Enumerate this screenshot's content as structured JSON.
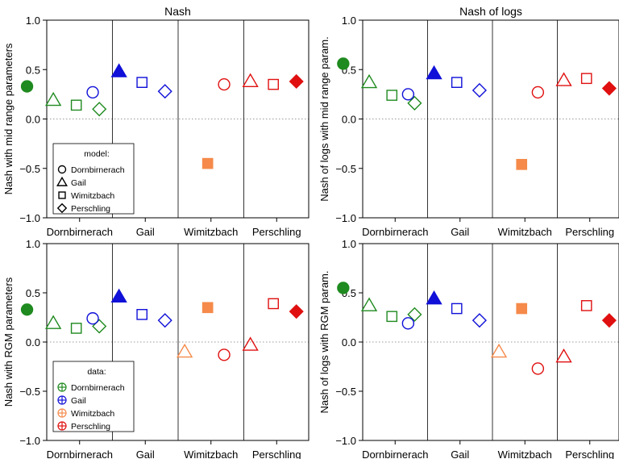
{
  "chart_data": [
    {
      "type": "scatter",
      "title": "Nash",
      "ylabel": "Nash with mid range parameters",
      "categories": [
        "Dornbirnerach",
        "Gail",
        "Wimitzbach",
        "Perschling"
      ],
      "ylim": [
        -1.0,
        1.0
      ],
      "yticks": [
        "1.0",
        "0.5",
        "0.0",
        "-0.5",
        "-1.0"
      ],
      "legend": {
        "title": "model:",
        "placement": "bottom-left",
        "entries": [
          "Dornbirnerach",
          "Gail",
          "Wimitzbach",
          "Perschling"
        ]
      },
      "points": [
        {
          "data": 0,
          "model": 0,
          "y": 0.33
        },
        {
          "data": 0,
          "model": 1,
          "y": 0.19
        },
        {
          "data": 0,
          "model": 2,
          "y": 0.14
        },
        {
          "data": 0,
          "model": 3,
          "y": 0.1
        },
        {
          "data": 1,
          "model": 0,
          "y": 0.27
        },
        {
          "data": 1,
          "model": 1,
          "y": 0.48
        },
        {
          "data": 1,
          "model": 2,
          "y": 0.37
        },
        {
          "data": 1,
          "model": 3,
          "y": 0.28
        },
        {
          "data": 2,
          "model": 2,
          "y": -0.45
        },
        {
          "data": 3,
          "model": 0,
          "y": 0.35
        },
        {
          "data": 3,
          "model": 1,
          "y": 0.38
        },
        {
          "data": 3,
          "model": 2,
          "y": 0.35
        },
        {
          "data": 3,
          "model": 3,
          "y": 0.38
        }
      ]
    },
    {
      "type": "scatter",
      "title": "Nash of logs",
      "ylabel": "Nash of logs with mid range param.",
      "categories": [
        "Dornbirnerach",
        "Gail",
        "Wimitzbach",
        "Perschling"
      ],
      "ylim": [
        -1.0,
        1.0
      ],
      "yticks": [
        "1.0",
        "0.5",
        "0.0",
        "-0.5",
        "-1.0"
      ],
      "points": [
        {
          "data": 0,
          "model": 0,
          "y": 0.56
        },
        {
          "data": 0,
          "model": 1,
          "y": 0.37
        },
        {
          "data": 0,
          "model": 2,
          "y": 0.24
        },
        {
          "data": 0,
          "model": 3,
          "y": 0.16
        },
        {
          "data": 1,
          "model": 0,
          "y": 0.25
        },
        {
          "data": 1,
          "model": 1,
          "y": 0.46
        },
        {
          "data": 1,
          "model": 2,
          "y": 0.37
        },
        {
          "data": 1,
          "model": 3,
          "y": 0.29
        },
        {
          "data": 2,
          "model": 2,
          "y": -0.46
        },
        {
          "data": 3,
          "model": 0,
          "y": 0.27
        },
        {
          "data": 3,
          "model": 1,
          "y": 0.39
        },
        {
          "data": 3,
          "model": 2,
          "y": 0.41
        },
        {
          "data": 3,
          "model": 3,
          "y": 0.31
        }
      ]
    },
    {
      "type": "scatter",
      "title": "",
      "ylabel": "Nash with RGM parameters",
      "categories": [
        "Dornbirnerach",
        "Gail",
        "Wimitzbach",
        "Perschling"
      ],
      "ylim": [
        -1.0,
        1.0
      ],
      "yticks": [
        "1.0",
        "0.5",
        "0.0",
        "-0.5",
        "-1.0"
      ],
      "legend": {
        "title": "data:",
        "placement": "bottom-left",
        "entries": [
          "Dornbirnerach",
          "Gail",
          "Wimitzbach",
          "Perschling"
        ]
      },
      "points": [
        {
          "data": 0,
          "model": 0,
          "y": 0.33
        },
        {
          "data": 0,
          "model": 1,
          "y": 0.19
        },
        {
          "data": 0,
          "model": 2,
          "y": 0.14
        },
        {
          "data": 0,
          "model": 3,
          "y": 0.16
        },
        {
          "data": 1,
          "model": 0,
          "y": 0.24
        },
        {
          "data": 1,
          "model": 1,
          "y": 0.46
        },
        {
          "data": 1,
          "model": 2,
          "y": 0.28
        },
        {
          "data": 1,
          "model": 3,
          "y": 0.22
        },
        {
          "data": 2,
          "model": 1,
          "y": -0.1
        },
        {
          "data": 2,
          "model": 2,
          "y": 0.35
        },
        {
          "data": 3,
          "model": 0,
          "y": -0.13
        },
        {
          "data": 3,
          "model": 1,
          "y": -0.03
        },
        {
          "data": 3,
          "model": 2,
          "y": 0.39
        },
        {
          "data": 3,
          "model": 3,
          "y": 0.31
        }
      ]
    },
    {
      "type": "scatter",
      "title": "",
      "ylabel": "Nash of logs with RGM param.",
      "categories": [
        "Dornbirnerach",
        "Gail",
        "Wimitzbach",
        "Perschling"
      ],
      "ylim": [
        -1.0,
        1.0
      ],
      "yticks": [
        "1.0",
        "0.5",
        "0.0",
        "-0.5",
        "-1.0"
      ],
      "points": [
        {
          "data": 0,
          "model": 0,
          "y": 0.55
        },
        {
          "data": 0,
          "model": 1,
          "y": 0.37
        },
        {
          "data": 0,
          "model": 2,
          "y": 0.26
        },
        {
          "data": 0,
          "model": 3,
          "y": 0.28
        },
        {
          "data": 1,
          "model": 0,
          "y": 0.19
        },
        {
          "data": 1,
          "model": 1,
          "y": 0.44
        },
        {
          "data": 1,
          "model": 2,
          "y": 0.34
        },
        {
          "data": 1,
          "model": 3,
          "y": 0.22
        },
        {
          "data": 2,
          "model": 1,
          "y": -0.1
        },
        {
          "data": 2,
          "model": 2,
          "y": 0.34
        },
        {
          "data": 3,
          "model": 0,
          "y": -0.27
        },
        {
          "data": 3,
          "model": 1,
          "y": -0.15
        },
        {
          "data": 3,
          "model": 2,
          "y": 0.37
        },
        {
          "data": 3,
          "model": 3,
          "y": 0.22
        }
      ]
    }
  ],
  "colors": {
    "Dornbirnerach": "#1f8a1f",
    "Gail": "#1010d8",
    "Wimitzbach": "#f58a4a",
    "Perschling": "#e01010"
  },
  "markers": [
    "circle",
    "triangle",
    "square",
    "diamond"
  ]
}
